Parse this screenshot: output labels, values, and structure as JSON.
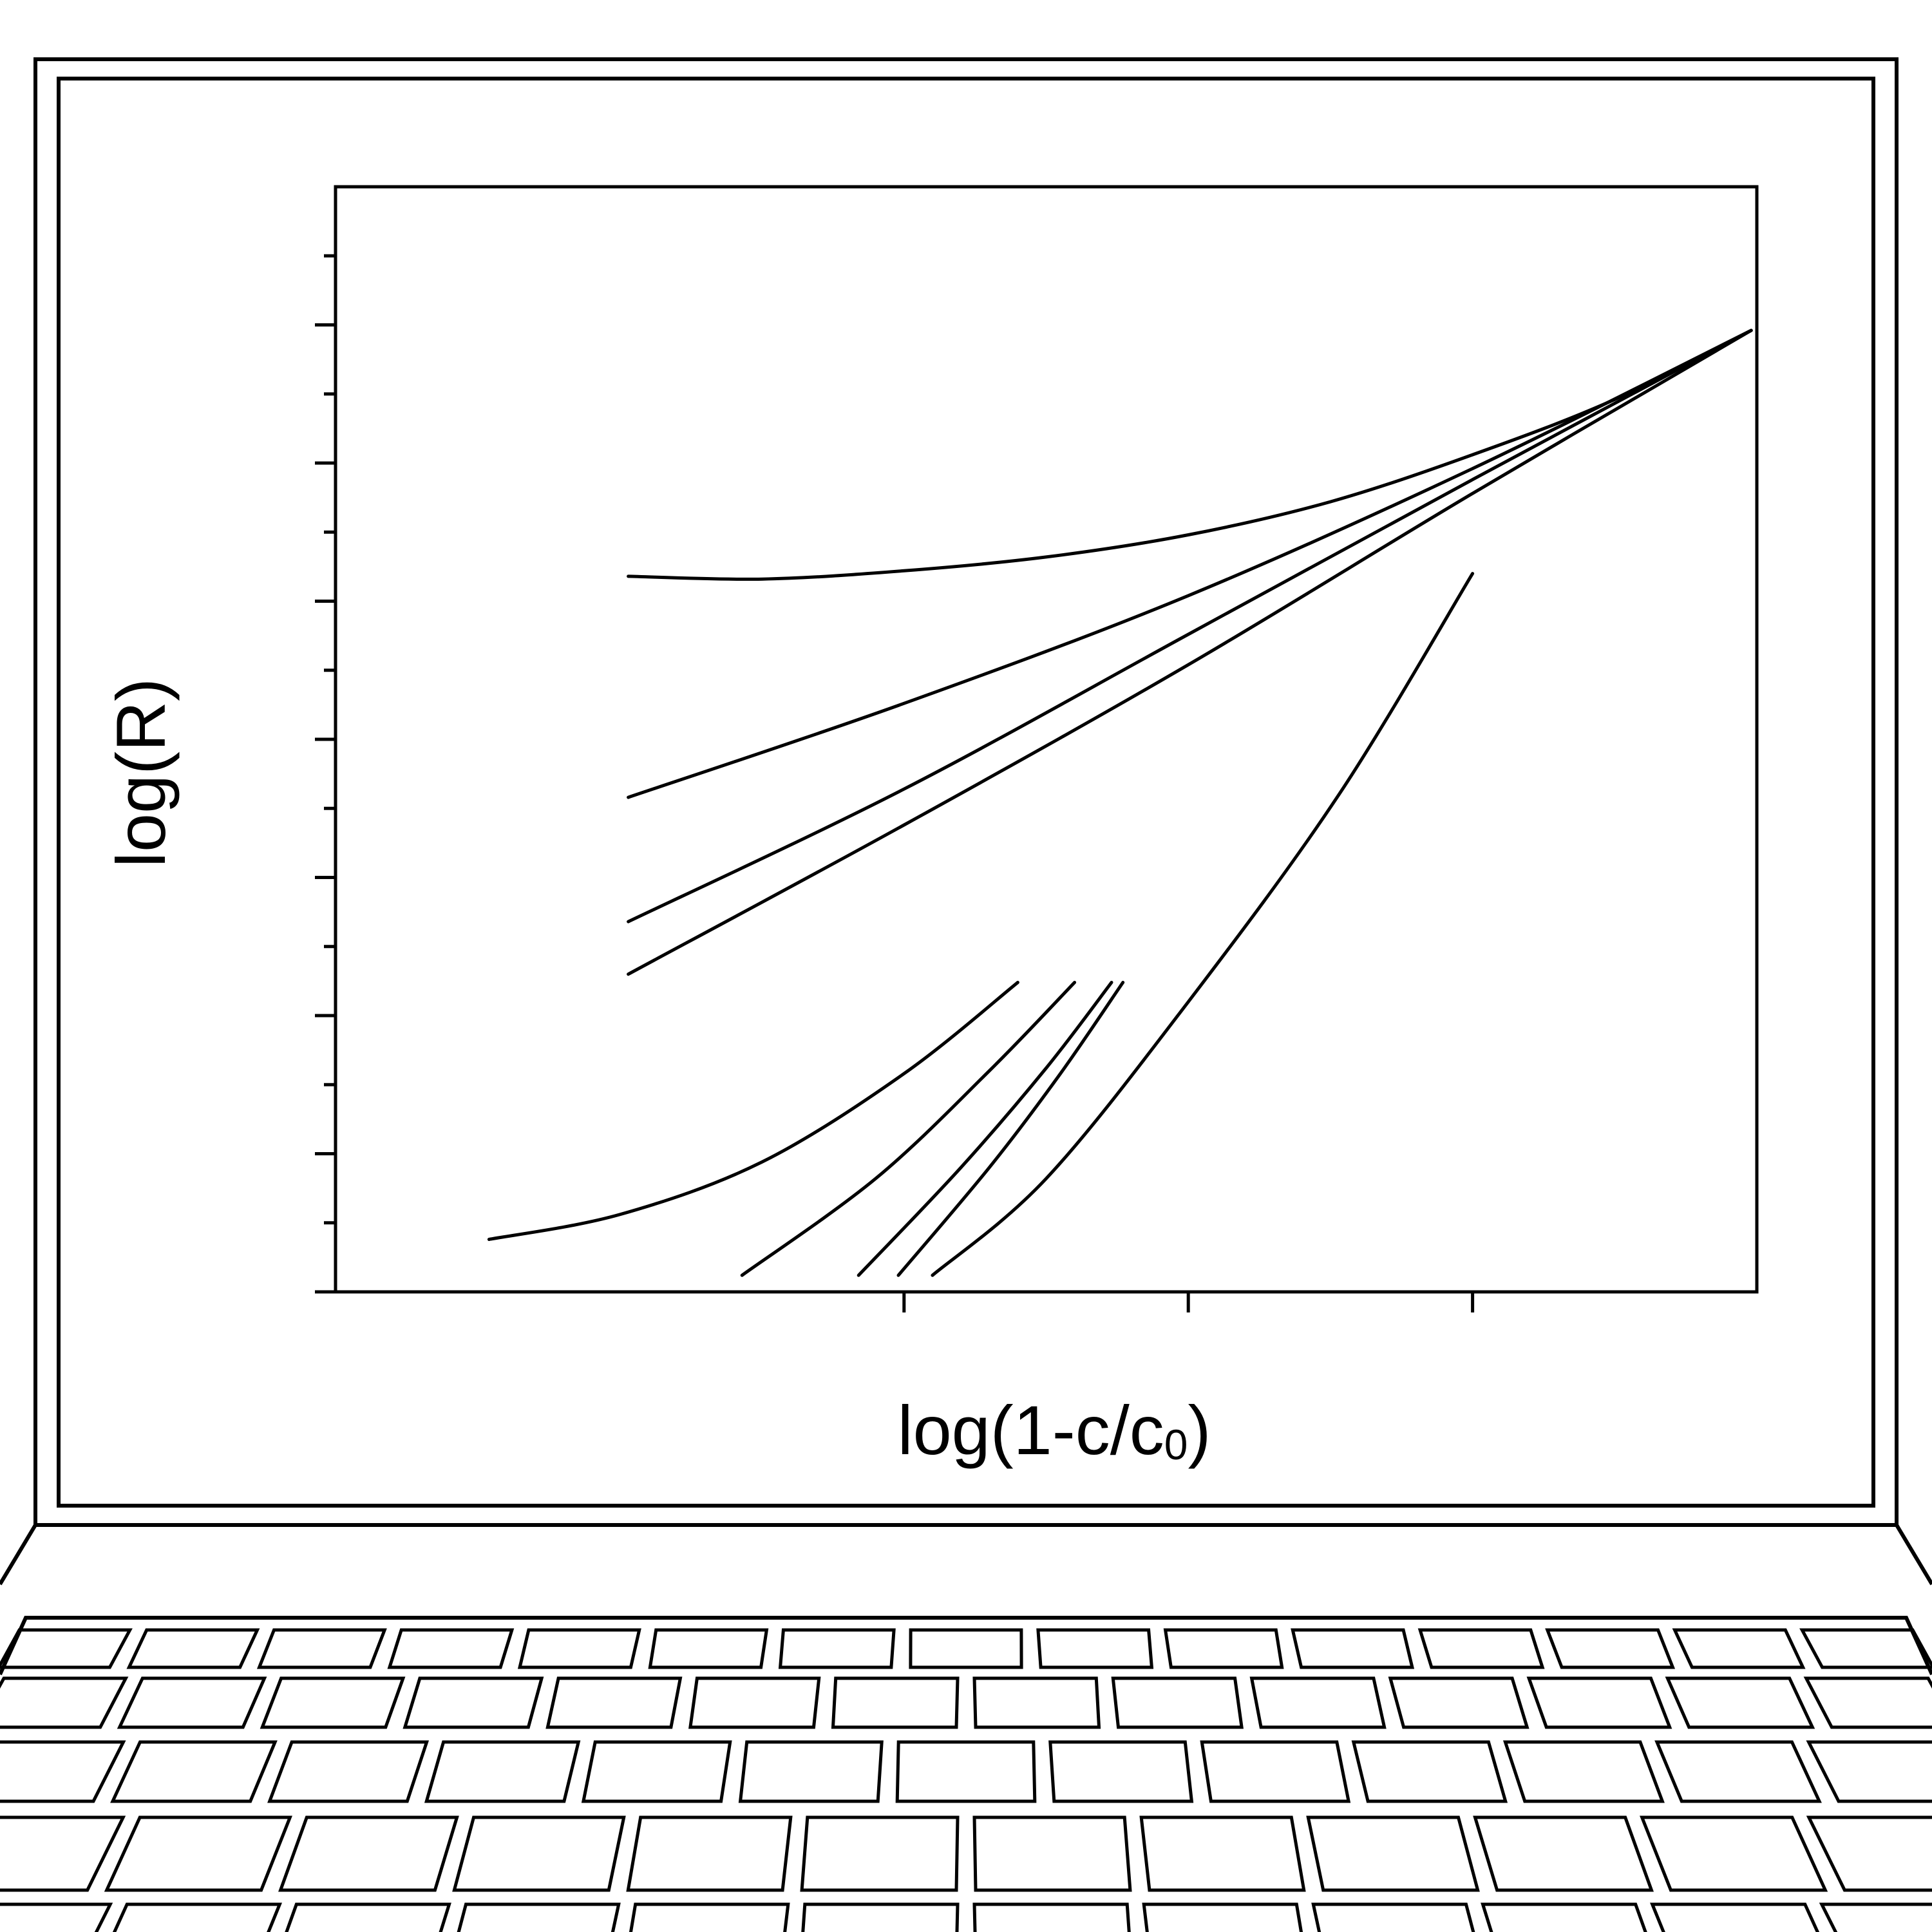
{
  "colors": {
    "ink": "#000000",
    "background": "#ffffff"
  },
  "chart_data": {
    "type": "line",
    "title": "",
    "xlabel": "log(1-c/c",
    "xlabel_subscript": "0",
    "xlabel_close": ")",
    "ylabel": "log(R)",
    "xlim": [
      -4.5,
      0.5
    ],
    "ylim": [
      -4.0,
      0.0
    ],
    "x_ticks": [
      -2.5,
      -1.5,
      -0.5
    ],
    "y_ticks_major": [
      -4.0,
      -3.5,
      -3.0,
      -2.5,
      -2.0,
      -1.5,
      -1.0,
      -0.5
    ],
    "y_ticks_minor": [
      -3.75,
      -3.25,
      -2.75,
      -2.25,
      -1.75,
      -1.25,
      -0.75,
      -0.25
    ],
    "tick_labels_shown": false,
    "grid": false,
    "legend": "none",
    "series": [
      {
        "x": [
          -3.47,
          -3.0,
          -2.5,
          -2.0,
          -1.5,
          -1.0,
          -0.5,
          0.0,
          0.48
        ],
        "y": [
          -1.41,
          -1.42,
          -1.39,
          -1.34,
          -1.26,
          -1.14,
          -0.97,
          -0.77,
          -0.52
        ]
      },
      {
        "x": [
          -3.47,
          -2.5,
          -1.5,
          -0.5,
          0.48
        ],
        "y": [
          -2.21,
          -1.87,
          -1.48,
          -1.02,
          -0.52
        ]
      },
      {
        "x": [
          -3.47,
          -2.5,
          -1.5,
          -0.5,
          0.48
        ],
        "y": [
          -2.66,
          -2.18,
          -1.62,
          -1.06,
          -0.52
        ]
      },
      {
        "x": [
          -3.47,
          -2.5,
          -1.5,
          -0.5,
          0.48
        ],
        "y": [
          -2.85,
          -2.31,
          -1.73,
          -1.11,
          -0.52
        ]
      },
      {
        "x": [
          -0.5,
          -0.97,
          -1.5,
          -2.0,
          -2.4
        ],
        "y": [
          -1.4,
          -2.2,
          -2.95,
          -3.59,
          -3.94
        ]
      },
      {
        "x": [
          -3.96,
          -3.5,
          -3.0,
          -2.5,
          -2.1
        ],
        "y": [
          -3.81,
          -3.72,
          -3.53,
          -3.21,
          -2.88
        ]
      },
      {
        "x": [
          -3.07,
          -2.6,
          -2.2,
          -1.9
        ],
        "y": [
          -3.94,
          -3.59,
          -3.2,
          -2.88
        ]
      },
      {
        "x": [
          -2.66,
          -2.3,
          -2.0,
          -1.77
        ],
        "y": [
          -3.94,
          -3.55,
          -3.19,
          -2.88
        ]
      },
      {
        "x": [
          -2.52,
          -2.2,
          -1.95,
          -1.73
        ],
        "y": [
          -3.94,
          -3.55,
          -3.21,
          -2.88
        ]
      }
    ]
  }
}
